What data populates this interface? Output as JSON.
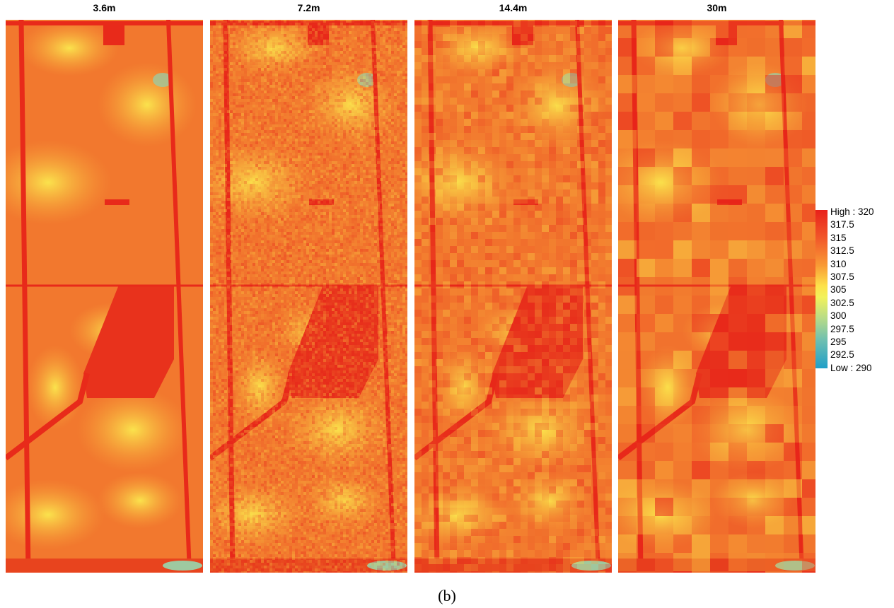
{
  "panels": [
    {
      "title": "3.6m"
    },
    {
      "title": "7.2m"
    },
    {
      "title": "14.4m"
    },
    {
      "title": "30m"
    }
  ],
  "legend": {
    "labels": [
      "High : 320",
      "317.5",
      "315",
      "312.5",
      "310",
      "307.5",
      "305",
      "302.5",
      "300",
      "297.5",
      "295",
      "292.5",
      "Low : 290"
    ]
  },
  "caption": "(b)"
}
